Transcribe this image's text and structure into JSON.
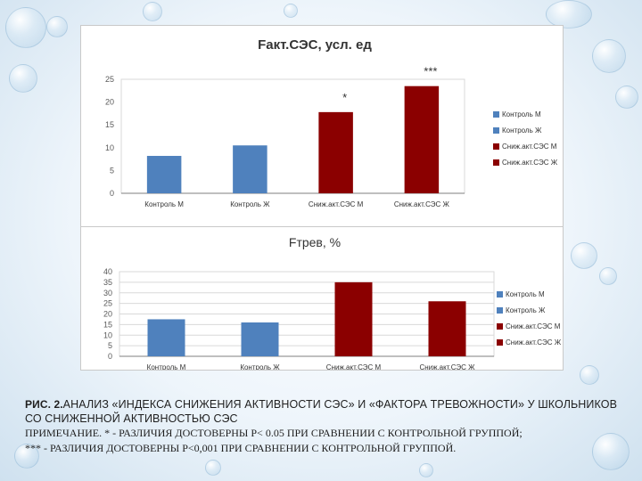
{
  "colors": {
    "blue": "#4f81bd",
    "red": "#8b0000",
    "grid": "#d9d9d9",
    "axis": "#7f7f7f"
  },
  "chart_data": [
    {
      "type": "bar",
      "title": "Fакт.СЭС, усл. ед",
      "categories": [
        "Контроль М",
        "Контроль Ж",
        "Сниж.акт.СЭС М",
        "Сниж.акт.СЭС Ж"
      ],
      "values": [
        8.2,
        10.5,
        17.8,
        23.5
      ],
      "bar_colors": [
        "#4f81bd",
        "#4f81bd",
        "#8b0000",
        "#8b0000"
      ],
      "annotations": [
        "",
        "",
        "*",
        "***"
      ],
      "legend": [
        "Контроль М",
        "Контроль Ж",
        "Сниж.акт.СЭС М",
        "Сниж.акт.СЭС Ж"
      ],
      "legend_position": "right",
      "ylim": [
        0,
        25
      ],
      "yticks": [
        0,
        5,
        10,
        15,
        20,
        25
      ],
      "grid": false
    },
    {
      "type": "bar",
      "title": "Fтрев, %",
      "categories": [
        "Контроль М",
        "Контроль Ж",
        "Сниж.акт.СЭС М",
        "Сниж.акт.СЭС Ж"
      ],
      "values": [
        17.5,
        16,
        35,
        26
      ],
      "bar_colors": [
        "#4f81bd",
        "#4f81bd",
        "#8b0000",
        "#8b0000"
      ],
      "legend": [
        "Контроль М",
        "Контроль Ж",
        "Сниж.акт.СЭС М",
        "Сниж.акт.СЭС Ж"
      ],
      "legend_position": "right",
      "ylim": [
        0,
        40
      ],
      "yticks": [
        0,
        5,
        10,
        15,
        20,
        25,
        30,
        35,
        40
      ],
      "grid": true
    }
  ],
  "caption": {
    "prefix": "Рис. 2.",
    "title": "Анализ «индекса снижения активности СЭС» и «фактора тревожности» у школьников со сниженной активностью СЭС",
    "note1": "Примечание. * - различия достоверны р< 0.05 при сравнении с контрольной группой;",
    "note2": "*** - различия достоверны р<0,001 при сравнении с контрольной группой."
  }
}
